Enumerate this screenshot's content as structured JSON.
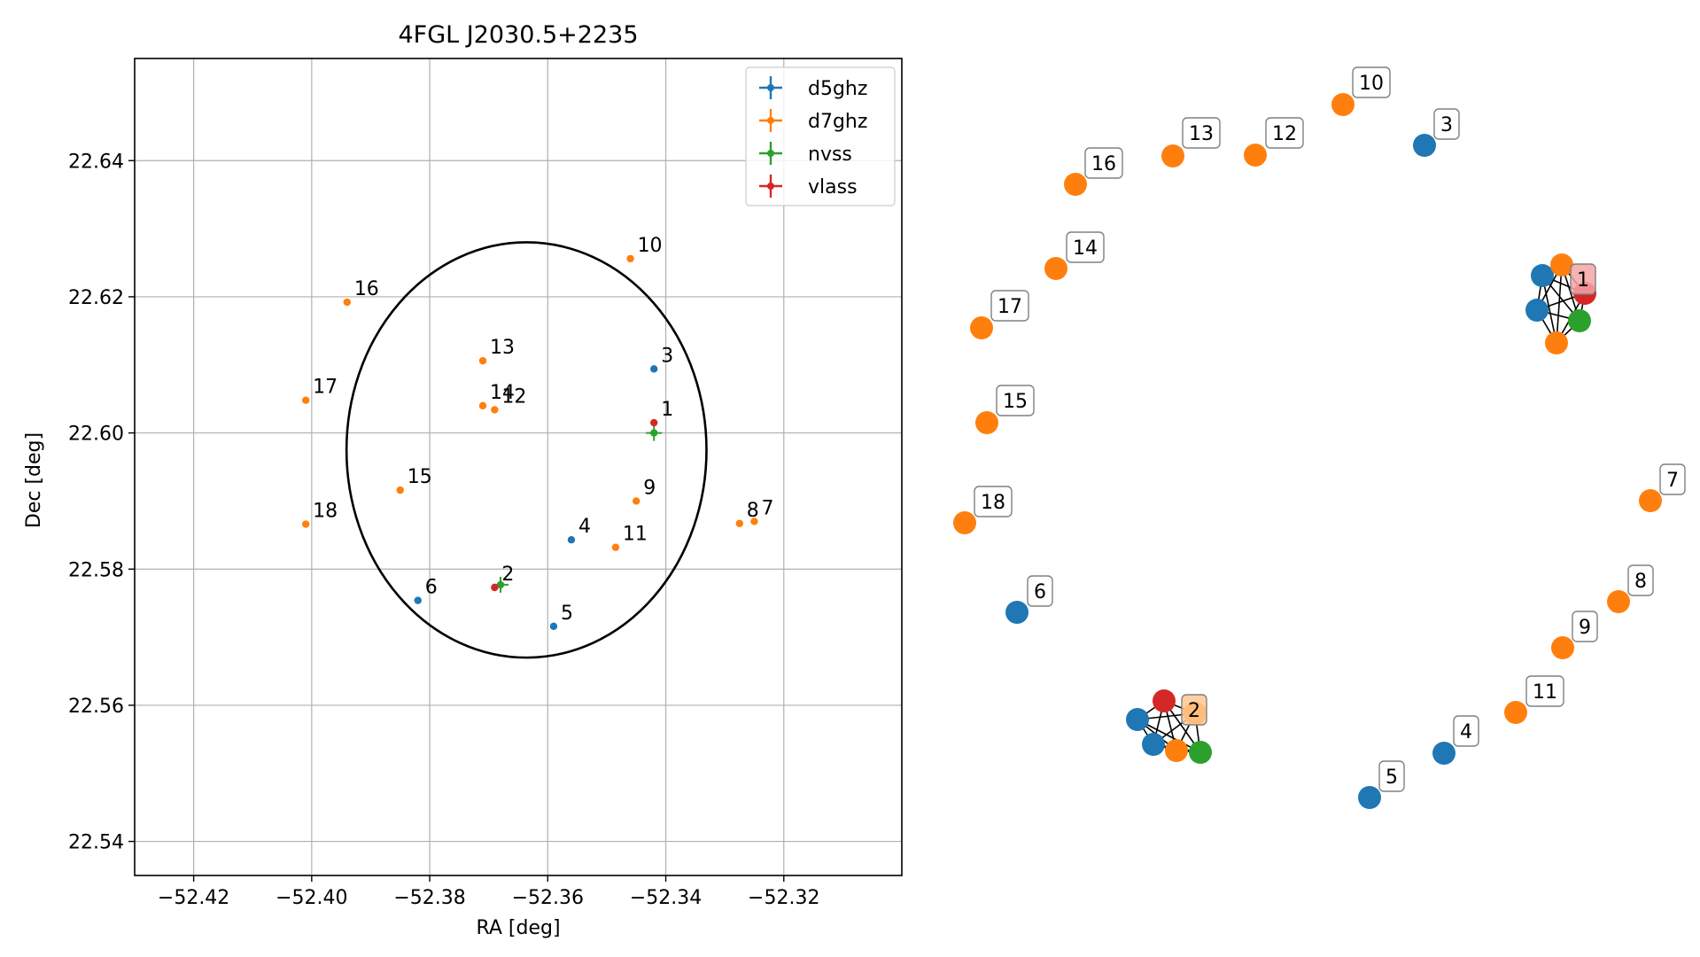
{
  "chart_data": [
    {
      "type": "scatter",
      "title": "4FGL J2030.5+2235",
      "xlabel": "RA [deg]",
      "ylabel": "Dec [deg]",
      "xlim": [
        -52.43,
        -52.3
      ],
      "ylim": [
        22.535,
        22.655
      ],
      "xticks": [
        -52.42,
        -52.4,
        -52.38,
        -52.36,
        -52.34,
        -52.32
      ],
      "xtick_labels": [
        "−52.42",
        "−52.40",
        "−52.38",
        "−52.36",
        "−52.34",
        "−52.32"
      ],
      "yticks": [
        22.54,
        22.56,
        22.58,
        22.6,
        22.62,
        22.64
      ],
      "ytick_labels": [
        "22.54",
        "22.56",
        "22.58",
        "22.60",
        "22.62",
        "22.64"
      ],
      "grid": true,
      "legend_position": "top-right",
      "circle": {
        "center": [
          -52.3636,
          22.5975
        ],
        "radius": 0.0305
      },
      "series": [
        {
          "name": "d5ghz",
          "color": "#1f77b4",
          "points": [
            {
              "id": "3",
              "x": -52.342,
              "y": 22.6094
            },
            {
              "id": "4",
              "x": -52.356,
              "y": 22.5843
            },
            {
              "id": "5",
              "x": -52.359,
              "y": 22.5716
            },
            {
              "id": "6",
              "x": -52.382,
              "y": 22.5754
            }
          ]
        },
        {
          "name": "d7ghz",
          "color": "#ff7f0e",
          "points": [
            {
              "id": "7",
              "x": -52.325,
              "y": 22.587
            },
            {
              "id": "8",
              "x": -52.3275,
              "y": 22.5867
            },
            {
              "id": "9",
              "x": -52.345,
              "y": 22.59
            },
            {
              "id": "10",
              "x": -52.346,
              "y": 22.6256
            },
            {
              "id": "11",
              "x": -52.3485,
              "y": 22.5832
            },
            {
              "id": "12",
              "x": -52.369,
              "y": 22.6034
            },
            {
              "id": "13",
              "x": -52.371,
              "y": 22.6106
            },
            {
              "id": "14",
              "x": -52.371,
              "y": 22.604
            },
            {
              "id": "15",
              "x": -52.385,
              "y": 22.5916
            },
            {
              "id": "16",
              "x": -52.394,
              "y": 22.6192
            },
            {
              "id": "17",
              "x": -52.401,
              "y": 22.6048
            },
            {
              "id": "18",
              "x": -52.401,
              "y": 22.5866
            }
          ]
        },
        {
          "name": "nvss",
          "color": "#2ca02c",
          "points": [
            {
              "id": "1",
              "x": -52.342,
              "y": 22.6
            },
            {
              "id": "2",
              "x": -52.368,
              "y": 22.5777
            }
          ]
        },
        {
          "name": "vlass",
          "color": "#d62728",
          "points": [
            {
              "id": "1",
              "x": -52.342,
              "y": 22.6015
            },
            {
              "id": "2",
              "x": -52.369,
              "y": 22.5773
            }
          ]
        }
      ],
      "point_labels": [
        {
          "text": "1",
          "x": -52.342,
          "y": 22.6015
        },
        {
          "text": "2",
          "x": -52.369,
          "y": 22.5773
        },
        {
          "text": "3",
          "x": -52.342,
          "y": 22.6094
        },
        {
          "text": "4",
          "x": -52.356,
          "y": 22.5843
        },
        {
          "text": "5",
          "x": -52.359,
          "y": 22.5716
        },
        {
          "text": "6",
          "x": -52.382,
          "y": 22.5754
        },
        {
          "text": "7",
          "x": -52.325,
          "y": 22.587
        },
        {
          "text": "8",
          "x": -52.3275,
          "y": 22.5867
        },
        {
          "text": "9",
          "x": -52.345,
          "y": 22.59
        },
        {
          "text": "10",
          "x": -52.346,
          "y": 22.6256
        },
        {
          "text": "11",
          "x": -52.3485,
          "y": 22.5832
        },
        {
          "text": "12",
          "x": -52.369,
          "y": 22.6034
        },
        {
          "text": "13",
          "x": -52.371,
          "y": 22.6106
        },
        {
          "text": "14",
          "x": -52.371,
          "y": 22.604
        },
        {
          "text": "15",
          "x": -52.385,
          "y": 22.5916
        },
        {
          "text": "16",
          "x": -52.394,
          "y": 22.6192
        },
        {
          "text": "17",
          "x": -52.401,
          "y": 22.6048
        },
        {
          "text": "18",
          "x": -52.401,
          "y": 22.5866
        }
      ]
    },
    {
      "type": "network",
      "node_colors": {
        "d5ghz": "#1f77b4",
        "d7ghz": "#ff7f0e",
        "nvss": "#2ca02c",
        "vlass": "#d62728"
      },
      "labels": [
        "1",
        "2",
        "3",
        "4",
        "5",
        "6",
        "7",
        "8",
        "9",
        "10",
        "11",
        "12",
        "13",
        "14",
        "15",
        "16",
        "17",
        "18"
      ],
      "label_box_colors": {
        "default": "#ffffff",
        "1": "#f4a6a7",
        "2": "#ffc891"
      }
    }
  ]
}
